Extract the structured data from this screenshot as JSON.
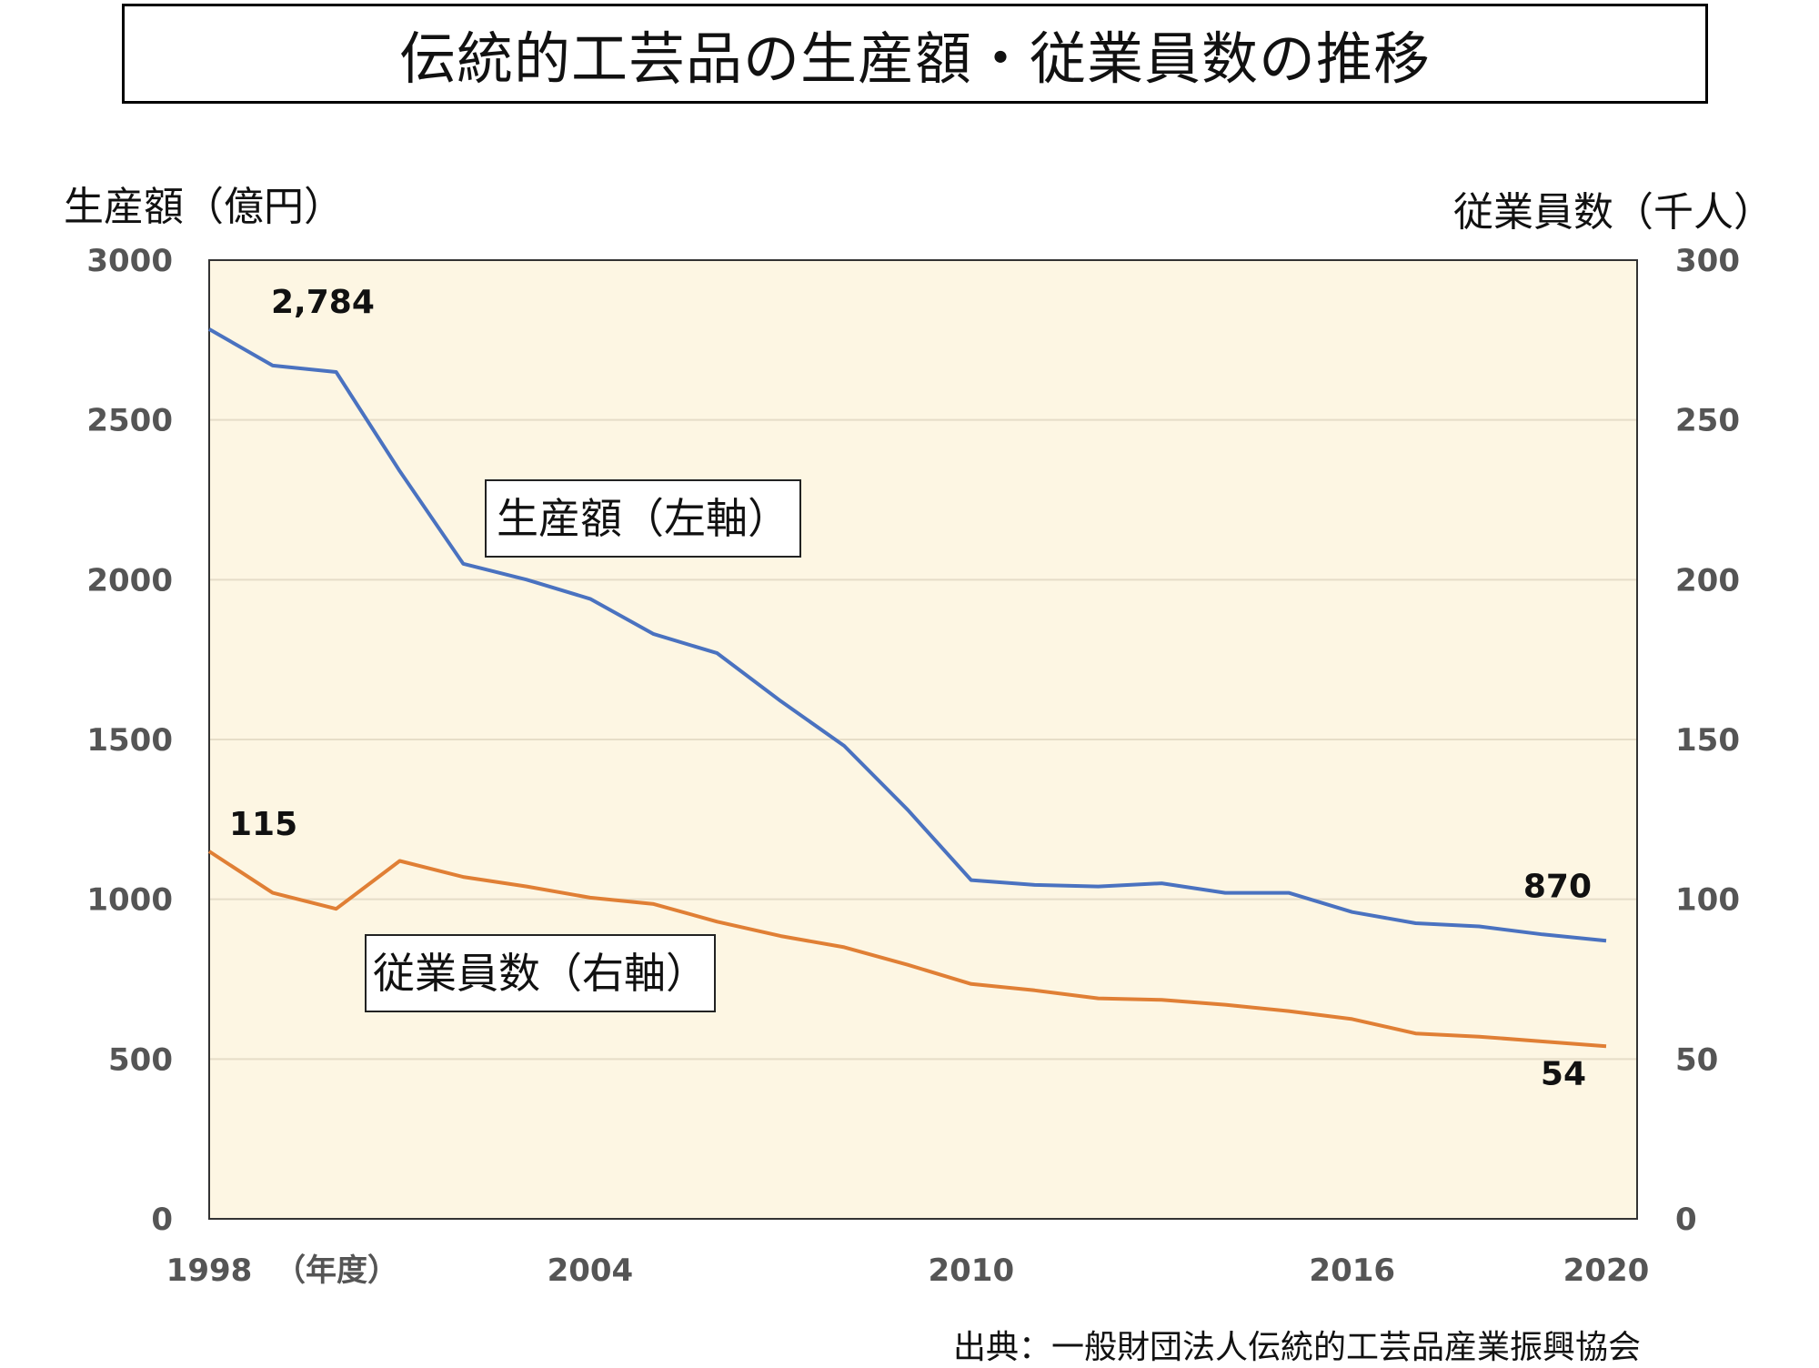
{
  "title": "伝統的工芸品の生産額・従業員数の推移",
  "source": "出典：一般財団法人伝統的工芸品産業振興協会",
  "colors": {
    "plot_background": "#fdf6e3",
    "production_line": "#4a72c0",
    "employees_line": "#e07f35",
    "gridline": "#e6ddc8"
  },
  "chart_data": {
    "type": "line",
    "ylabel": "生産額（億円）",
    "y2label": "従業員数（千人）",
    "xlabel": "（年度）",
    "ylim": [
      0,
      3000
    ],
    "y2lim": [
      0,
      300
    ],
    "yticks": [
      "0",
      "500",
      "1000",
      "1500",
      "2000",
      "2500",
      "3000"
    ],
    "y2ticks": [
      "0",
      "50",
      "100",
      "150",
      "200",
      "250",
      "300"
    ],
    "xticks": [
      "1998",
      "2004",
      "2010",
      "2016",
      "2020"
    ],
    "x": [
      1998,
      1999,
      2000,
      2001,
      2002,
      2003,
      2004,
      2005,
      2006,
      2007,
      2008,
      2009,
      2010,
      2011,
      2012,
      2013,
      2014,
      2015,
      2016,
      2017,
      2018,
      2019,
      2020
    ],
    "grid": "horizontal",
    "series": [
      {
        "name": "生産額（左軸）",
        "axis": "left",
        "values": [
          2784,
          2670,
          2650,
          2340,
          2050,
          2000,
          1940,
          1830,
          1770,
          1620,
          1480,
          1280,
          1060,
          1045,
          1040,
          1050,
          1020,
          1020,
          960,
          925,
          915,
          890,
          870
        ]
      },
      {
        "name": "従業員数（右軸）",
        "axis": "right",
        "values": [
          115,
          102,
          97,
          112,
          107,
          104,
          100.5,
          98.5,
          93,
          88.5,
          85,
          79.5,
          73.5,
          71.5,
          69,
          68.5,
          67,
          65,
          62.5,
          58,
          57,
          55.5,
          54
        ]
      }
    ],
    "data_labels": [
      {
        "series": 0,
        "index": 0,
        "text": "2,784"
      },
      {
        "series": 0,
        "index": 22,
        "text": "870"
      },
      {
        "series": 1,
        "index": 0,
        "text": "115"
      },
      {
        "series": 1,
        "index": 22,
        "text": "54"
      }
    ]
  }
}
